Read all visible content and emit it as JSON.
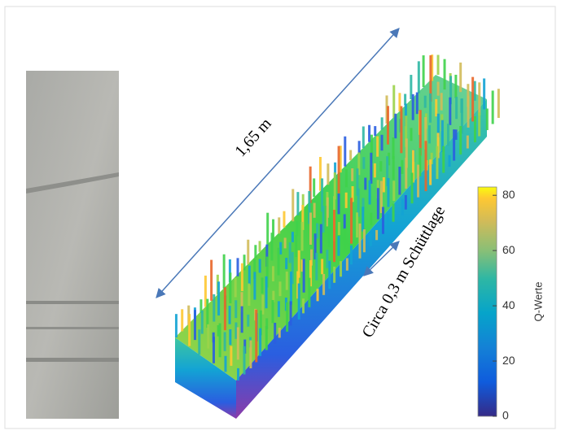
{
  "figure": {
    "length_label": "1,65 m",
    "layer_label": "Circa 0,3 m Schüttlage",
    "colorbar": {
      "label": "Q-Werte",
      "lim": [
        0,
        83
      ],
      "ticks": [
        0,
        20,
        40,
        60,
        80
      ]
    }
  }
}
